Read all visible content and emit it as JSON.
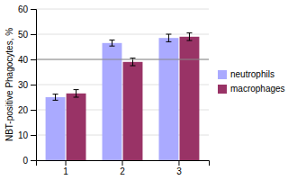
{
  "chart_data": {
    "type": "bar",
    "ylabel": "NBT-positive Phagocytes, %",
    "categories": [
      "1",
      "2",
      "3"
    ],
    "series": [
      {
        "name": "neutrophils",
        "color": "#aaaaff",
        "values": [
          25.0,
          46.5,
          48.5
        ],
        "errors": [
          1.2,
          1.2,
          1.5
        ]
      },
      {
        "name": "macrophages",
        "color": "#993366",
        "values": [
          26.5,
          39.0,
          49.0
        ],
        "errors": [
          1.5,
          1.5,
          1.5
        ]
      }
    ],
    "reference_lines": [
      {
        "y": 40,
        "color": "#888888"
      }
    ],
    "ylim": [
      0,
      60
    ],
    "yticks": [
      0,
      10,
      20,
      30,
      40,
      50,
      60
    ],
    "grid": true,
    "legend": "right"
  }
}
